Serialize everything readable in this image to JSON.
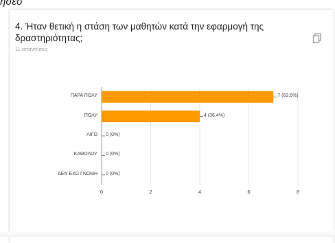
{
  "top_fragment": "ησεσ",
  "question": {
    "title": "4. Ήταν θετική η στάση των μαθητών κατά την εφαρμογή της δραστηριότητας;",
    "responses_count_text": "11 απαντήσεις",
    "copy_icon": "copy-icon"
  },
  "colors": {
    "bar": "#ff9900",
    "axis": "#9e9e9e",
    "grid": "#e0e0e0",
    "card_bg": "#ffffff"
  },
  "chart_data": {
    "type": "bar",
    "orientation": "horizontal",
    "categories": [
      "ΠΑΡΑ ΠΟΛΥ",
      "ΠΟΛΥ",
      "ΛΙΓΟ",
      "ΚΑΘΟΛΟΥ",
      "ΔΕΝ ΕΧΩ ΓΝΩΜΗ"
    ],
    "values": [
      7,
      4,
      0,
      0,
      0
    ],
    "data_labels": [
      "7 (63,6%)",
      "4 (36,4%)",
      "0 (0%)",
      "0 (0%)",
      "0 (0%)"
    ],
    "xlim": [
      0,
      8
    ],
    "x_ticks": [
      "0",
      "2",
      "4",
      "6",
      "8"
    ],
    "grid": true
  }
}
